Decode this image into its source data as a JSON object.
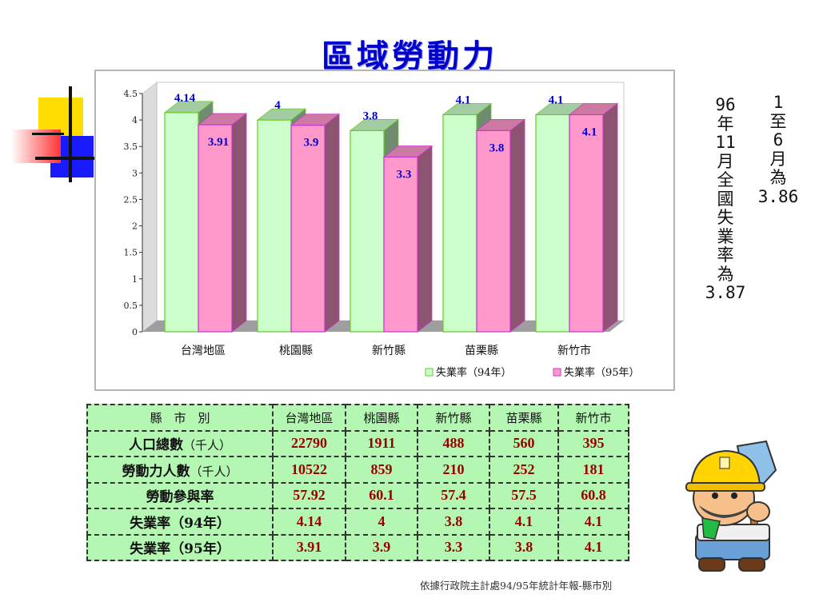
{
  "title": "區域勞動力",
  "chart_data": {
    "type": "bar",
    "categories": [
      "台灣地區",
      "桃園縣",
      "新竹縣",
      "苗栗縣",
      "新竹市"
    ],
    "series": [
      {
        "name": "失業率（94年）",
        "values": [
          4.14,
          4,
          3.8,
          4.1,
          4.1
        ],
        "labels": [
          "4.14",
          "4",
          "3.8",
          "4.1",
          "4.1"
        ],
        "color": "#ccffcc"
      },
      {
        "name": "失業率（95年）",
        "values": [
          3.91,
          3.9,
          3.3,
          3.8,
          4.1
        ],
        "labels": [
          "3.91",
          "3.9",
          "3.3",
          "3.8",
          "4.1"
        ],
        "color": "#ff99cc"
      }
    ],
    "ylim": [
      0,
      4.5
    ],
    "yticks": [
      "0",
      "0.5",
      "1",
      "1.5",
      "2",
      "2.5",
      "3",
      "3.5",
      "4",
      "4.5"
    ],
    "legend_position": "bottom-right",
    "grid": false
  },
  "notes": {
    "col1": [
      "96",
      "年",
      "11",
      "月",
      "全",
      "國",
      "失",
      "業",
      "率",
      "為",
      "3.87"
    ],
    "col2": [
      "1",
      "至",
      "6",
      "月",
      "為",
      "3.86"
    ]
  },
  "table": {
    "header": [
      "縣　市　別",
      "台灣地區",
      "桃園縣",
      "新竹縣",
      "苗栗縣",
      "新竹市"
    ],
    "rows": [
      {
        "label": "人口總數",
        "unit": "（千人）",
        "values": [
          "22790",
          "1911",
          "488",
          "560",
          "395"
        ]
      },
      {
        "label": "勞動力人數",
        "unit": "（千人）",
        "values": [
          "10522",
          "859",
          "210",
          "252",
          "181"
        ]
      },
      {
        "label": "勞動參與率",
        "unit": "",
        "values": [
          "57.92",
          "60.1",
          "57.4",
          "57.5",
          "60.8"
        ]
      },
      {
        "label": "失業率（94年）",
        "unit": "",
        "values": [
          "4.14",
          "4",
          "3.8",
          "4.1",
          "4.1"
        ]
      },
      {
        "label": "失業率（95年）",
        "unit": "",
        "values": [
          "3.91",
          "3.9",
          "3.3",
          "3.8",
          "4.1"
        ]
      }
    ]
  },
  "source": "依據行政院主計處94/95年統計年報-縣市別",
  "colors": {
    "title": "#0000cc",
    "table_bg": "#b3f7b3",
    "value_text": "#990000",
    "label_text": "#0000cc"
  }
}
